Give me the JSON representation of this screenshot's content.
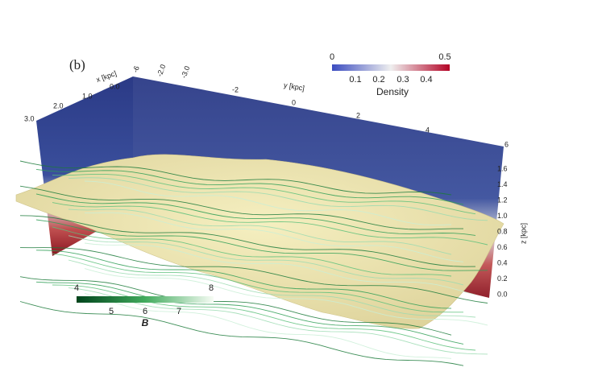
{
  "panel_label": "(b)",
  "density_colorbar": {
    "title": "Density",
    "end_labels": [
      "0",
      "0.5"
    ],
    "tick_labels": [
      "0.1",
      "0.2",
      "0.3",
      "0.4"
    ]
  },
  "b_colorbar": {
    "title": "B",
    "end_labels": [
      "4",
      "8"
    ],
    "tick_labels": [
      "5",
      "6",
      "7"
    ]
  },
  "x_axis": {
    "label": "x [kpc]",
    "ticks": [
      "3.0",
      "2.0",
      "1.0",
      "0.0"
    ],
    "top_ticks": [
      "-6",
      "-2.0",
      "-3.0"
    ]
  },
  "y_axis": {
    "label": "y [kpc]",
    "ticks": [
      "-2",
      "0",
      "2",
      "4",
      "6"
    ]
  },
  "z_axis": {
    "label": "z [kpc]",
    "ticks": [
      "1.6",
      "1.4",
      "1.2",
      "1.0",
      "0.8",
      "0.6",
      "0.4",
      "0.2",
      "0.0"
    ]
  }
}
